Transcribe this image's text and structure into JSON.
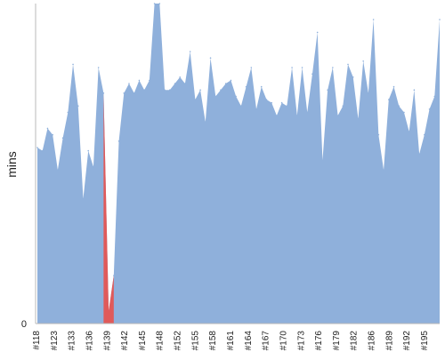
{
  "chart_data": {
    "type": "area",
    "title": "",
    "xlabel": "",
    "ylabel": "mins",
    "y_zero_label": "0",
    "ylim": [
      0,
      100
    ],
    "grid": false,
    "legend": "none",
    "x_tick_labels": [
      "#118",
      "#123",
      "#133",
      "#136",
      "#139",
      "#142",
      "#145",
      "#148",
      "#152",
      "#155",
      "#158",
      "#161",
      "#164",
      "#167",
      "#170",
      "#173",
      "#176",
      "#179",
      "#182",
      "#186",
      "#189",
      "#192",
      "#195"
    ],
    "x": [
      "#118",
      "#119",
      "#120",
      "#121",
      "#122",
      "#123",
      "#124",
      "#125",
      "#126",
      "#127",
      "#128",
      "#129",
      "#130",
      "#131",
      "#132",
      "#133",
      "#134",
      "#135",
      "#136",
      "#137",
      "#138",
      "#139",
      "#140",
      "#141",
      "#142",
      "#143",
      "#144",
      "#145",
      "#146",
      "#147",
      "#148",
      "#149",
      "#150",
      "#151",
      "#152",
      "#153",
      "#154",
      "#155",
      "#156",
      "#157",
      "#158",
      "#159",
      "#160",
      "#161",
      "#162",
      "#163",
      "#164",
      "#165",
      "#166",
      "#167",
      "#168",
      "#169",
      "#170",
      "#171",
      "#172",
      "#173",
      "#174",
      "#175",
      "#176",
      "#177",
      "#178",
      "#179",
      "#180",
      "#181",
      "#182",
      "#183",
      "#184",
      "#185",
      "#186",
      "#187",
      "#188",
      "#189",
      "#190",
      "#191",
      "#192",
      "#193",
      "#194",
      "#195",
      "#196",
      "#197"
    ],
    "values": [
      55,
      54,
      61,
      59,
      48,
      58,
      66,
      81,
      68,
      39,
      54,
      49,
      80,
      72,
      4,
      15,
      57,
      72,
      75,
      72,
      76,
      73,
      76,
      100,
      100,
      73,
      73,
      75,
      77,
      75,
      85,
      70,
      73,
      63,
      83,
      71,
      73,
      75,
      76,
      71,
      68,
      74,
      80,
      67,
      74,
      70,
      69,
      65,
      69,
      68,
      80,
      65,
      80,
      66,
      78,
      91,
      51,
      73,
      80,
      65,
      68,
      81,
      77,
      64,
      82,
      72,
      95,
      59,
      48,
      70,
      74,
      68,
      66,
      60,
      73,
      53,
      59,
      67,
      71,
      95
    ],
    "highlight": {
      "color": "#e05a5a",
      "indices": [
        13,
        14,
        15
      ]
    },
    "colors": {
      "area": "#8fb0db",
      "axis": "#b8b8b8",
      "text": "#222222"
    }
  }
}
